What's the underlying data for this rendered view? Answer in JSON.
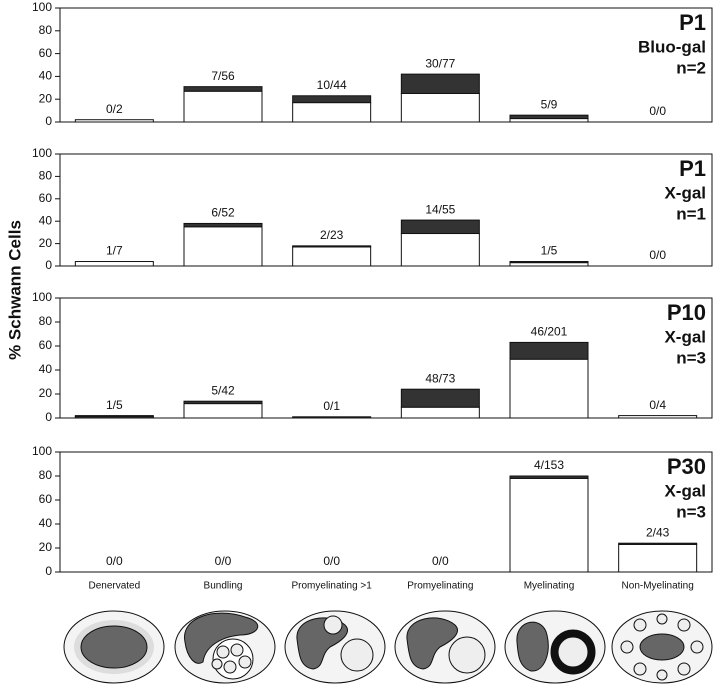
{
  "ylabel": "% Schwann Cells",
  "chart_data": [
    {
      "type": "bar",
      "stacked": true,
      "panel_label": "P1",
      "stain": "Bluo-gal",
      "n": "n=2",
      "annotations": [
        "0/2",
        "7/56",
        "10/44",
        "30/77",
        "5/9",
        "0/0"
      ],
      "series": [
        {
          "color": "#ffffff",
          "values": [
            2,
            27,
            17,
            25,
            3,
            0
          ]
        },
        {
          "color": "#333333",
          "values": [
            0,
            4,
            6,
            17,
            3,
            0
          ]
        }
      ],
      "ylim": [
        0,
        100
      ],
      "yticks": [
        0,
        20,
        40,
        60,
        80,
        100
      ]
    },
    {
      "type": "bar",
      "stacked": true,
      "panel_label": "P1",
      "stain": "X-gal",
      "n": "n=1",
      "annotations": [
        "1/7",
        "6/52",
        "2/23",
        "14/55",
        "1/5",
        "0/0"
      ],
      "series": [
        {
          "color": "#ffffff",
          "values": [
            4,
            35,
            17,
            29,
            3,
            0
          ]
        },
        {
          "color": "#333333",
          "values": [
            0,
            3,
            1,
            12,
            1,
            0
          ]
        }
      ],
      "ylim": [
        0,
        100
      ],
      "yticks": [
        0,
        20,
        40,
        60,
        80,
        100
      ]
    },
    {
      "type": "bar",
      "stacked": true,
      "panel_label": "P10",
      "stain": "X-gal",
      "n": "n=3",
      "annotations": [
        "1/5",
        "5/42",
        "0/1",
        "48/73",
        "46/201",
        "0/4"
      ],
      "series": [
        {
          "color": "#ffffff",
          "values": [
            1,
            12,
            0,
            9,
            49,
            2
          ]
        },
        {
          "color": "#333333",
          "values": [
            1,
            2,
            1,
            15,
            14,
            0
          ]
        }
      ],
      "ylim": [
        0,
        100
      ],
      "yticks": [
        0,
        20,
        40,
        60,
        80,
        100
      ]
    },
    {
      "type": "bar",
      "stacked": true,
      "panel_label": "P30",
      "stain": "X-gal",
      "n": "n=3",
      "annotations": [
        "0/0",
        "0/0",
        "0/0",
        "0/0",
        "4/153",
        "2/43"
      ],
      "categories": [
        "Denervated",
        "Bundling",
        "Promyelinating >1",
        "Promyelinating",
        "Myelinating",
        "Non-Myelinating"
      ],
      "series": [
        {
          "color": "#ffffff",
          "values": [
            0,
            0,
            0,
            0,
            78,
            23
          ]
        },
        {
          "color": "#333333",
          "values": [
            0,
            0,
            0,
            0,
            2,
            1
          ]
        }
      ],
      "ylim": [
        0,
        100
      ],
      "yticks": [
        0,
        20,
        40,
        60,
        80,
        100
      ]
    }
  ]
}
